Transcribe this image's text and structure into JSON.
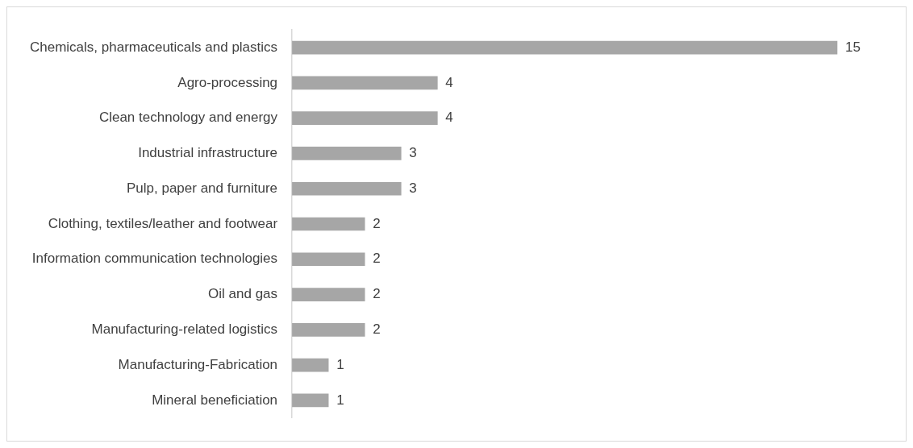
{
  "chart_data": {
    "type": "bar",
    "orientation": "horizontal",
    "categories": [
      "Chemicals, pharmaceuticals and plastics",
      "Agro-processing",
      "Clean technology and energy",
      "Industrial infrastructure",
      "Pulp, paper and furniture",
      "Clothing, textiles/leather and footwear",
      "Information communication technologies",
      "Oil and gas",
      "Manufacturing-related logistics",
      "Manufacturing-Fabrication",
      "Mineral beneficiation"
    ],
    "values": [
      15,
      4,
      4,
      3,
      3,
      2,
      2,
      2,
      2,
      1,
      1
    ],
    "color": "#a6a6a6",
    "data_labels": true,
    "grid": false,
    "legend": false,
    "tick_labels": "y"
  }
}
